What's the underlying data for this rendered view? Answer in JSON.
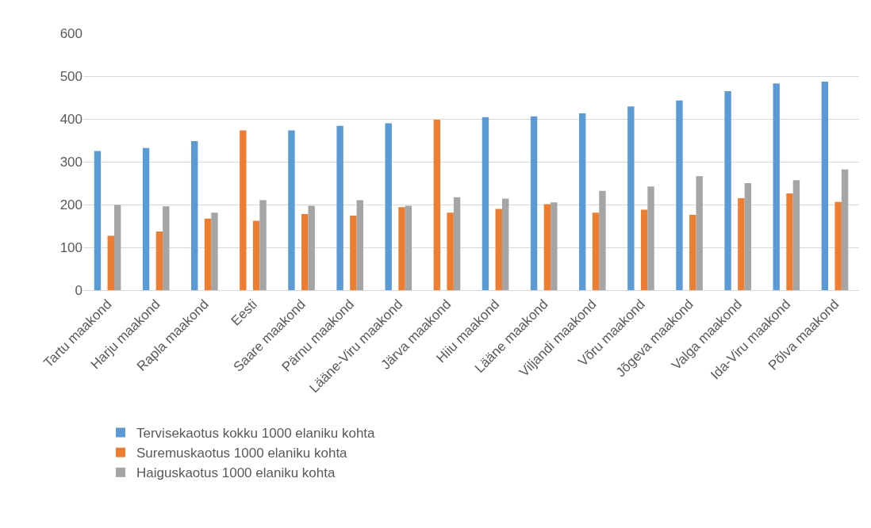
{
  "chart_data": {
    "type": "bar",
    "categories": [
      "Tartu maakond",
      "Harju maakond",
      "Rapla maakond",
      "Eesti",
      "Saare maakond",
      "Pärnu maakond",
      "Lääne-Viru maakond",
      "Järva maakond",
      "Hiiu maakond",
      "Lääne maakond",
      "Viljandi maakond",
      "Võru maakond",
      "Jõgeva maakond",
      "Valga maakond",
      "Ida-Viru maakond",
      "Põlva maakond"
    ],
    "series": [
      {
        "name": "Tervisekaotus kokku 1000 elaniku kohta",
        "color": "#5b9bd5",
        "colors": [
          "#5b9bd5",
          "#5b9bd5",
          "#5b9bd5",
          "#ed7d31",
          "#5b9bd5",
          "#5b9bd5",
          "#5b9bd5",
          "#ed7d31",
          "#5b9bd5",
          "#5b9bd5",
          "#5b9bd5",
          "#5b9bd5",
          "#5b9bd5",
          "#5b9bd5",
          "#5b9bd5",
          "#5b9bd5"
        ],
        "values": [
          325,
          332,
          348,
          373,
          373,
          384,
          390,
          398,
          404,
          406,
          413,
          429,
          443,
          465,
          483,
          487
        ]
      },
      {
        "name": "Suremuskaotus 1000 elaniku kohta",
        "color": "#ed7d31",
        "values": [
          127,
          137,
          167,
          162,
          178,
          174,
          194,
          181,
          190,
          201,
          181,
          188,
          176,
          215,
          226,
          206
        ]
      },
      {
        "name": "Haiguskaotus 1000 elaniku kohta",
        "color": "#a5a5a5",
        "values": [
          199,
          196,
          181,
          210,
          197,
          210,
          197,
          217,
          214,
          205,
          232,
          242,
          266,
          250,
          257,
          282
        ]
      }
    ],
    "ylim": [
      0,
      600
    ],
    "yticks": [
      0,
      100,
      200,
      300,
      400,
      500,
      600
    ],
    "grid": "y",
    "legend": "bottom"
  }
}
